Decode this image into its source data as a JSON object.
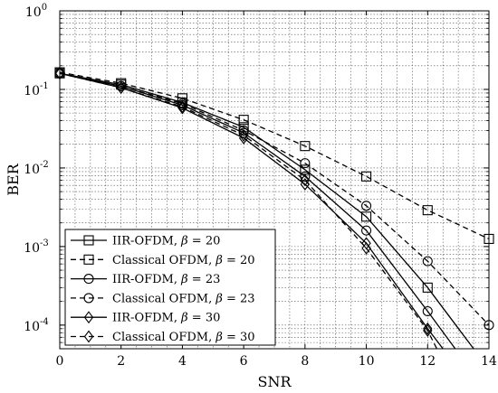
{
  "chart_data": {
    "type": "line",
    "xlabel": "SNR",
    "ylabel": "BER",
    "xlim": [
      0,
      14
    ],
    "ylim": [
      5e-05,
      1
    ],
    "yscale": "log",
    "grid": true,
    "legend_position": "bottom-left",
    "x_ticks": [
      0,
      2,
      4,
      6,
      8,
      10,
      12,
      14
    ],
    "y_ticks": [
      {
        "value": 1,
        "base": "10",
        "exp": "0"
      },
      {
        "value": 0.1,
        "base": "10",
        "exp": "-1"
      },
      {
        "value": 0.01,
        "base": "10",
        "exp": "-2"
      },
      {
        "value": 0.001,
        "base": "10",
        "exp": "-3"
      },
      {
        "value": 0.0001,
        "base": "10",
        "exp": "-4"
      }
    ],
    "series": [
      {
        "name": "IIR-OFDM, β = 20",
        "label_prefix": "IIR-OFDM, ",
        "label_symbol": "β",
        "label_suffix": " = 20",
        "dash": "solid",
        "marker": "square",
        "x": [
          0,
          2,
          4,
          6,
          8,
          10,
          12,
          13.5
        ],
        "y": [
          0.16,
          0.115,
          0.068,
          0.033,
          0.0095,
          0.0024,
          0.0003,
          5e-05
        ]
      },
      {
        "name": "Classical OFDM, β = 20",
        "label_prefix": "Classical OFDM, ",
        "label_symbol": "β",
        "label_suffix": " = 20",
        "dash": "dashed",
        "marker": "square",
        "x": [
          0,
          2,
          4,
          6,
          8,
          10,
          12,
          14
        ],
        "y": [
          0.165,
          0.12,
          0.077,
          0.041,
          0.019,
          0.0078,
          0.0029,
          0.00125
        ]
      },
      {
        "name": "IIR-OFDM, β = 23",
        "label_prefix": "IIR-OFDM, ",
        "label_symbol": "β",
        "label_suffix": " = 23",
        "dash": "solid",
        "marker": "circle",
        "x": [
          0,
          2,
          4,
          6,
          8,
          10,
          12,
          12.9
        ],
        "y": [
          0.16,
          0.11,
          0.063,
          0.028,
          0.0078,
          0.0016,
          0.00015,
          5e-05
        ]
      },
      {
        "name": "Classical OFDM, β = 23",
        "label_prefix": "Classical OFDM, ",
        "label_symbol": "β",
        "label_suffix": " = 23",
        "dash": "dashed",
        "marker": "circle",
        "x": [
          0,
          2,
          4,
          6,
          8,
          10,
          12,
          14
        ],
        "y": [
          0.16,
          0.11,
          0.066,
          0.03,
          0.0115,
          0.0033,
          0.00065,
          0.0001
        ]
      },
      {
        "name": "IIR-OFDM, β = 30",
        "label_prefix": "IIR-OFDM, ",
        "label_symbol": "β",
        "label_suffix": " = 30",
        "dash": "solid",
        "marker": "diamond",
        "x": [
          0,
          2,
          4,
          6,
          8,
          10,
          12,
          12.5
        ],
        "y": [
          0.16,
          0.105,
          0.058,
          0.024,
          0.0062,
          0.0011,
          9e-05,
          5e-05
        ]
      },
      {
        "name": "Classical OFDM, β = 30",
        "label_prefix": "Classical OFDM, ",
        "label_symbol": "β",
        "label_suffix": " = 30",
        "dash": "dashed",
        "marker": "diamond",
        "x": [
          0,
          2,
          4,
          6,
          8,
          10,
          12,
          12.3
        ],
        "y": [
          0.16,
          0.105,
          0.06,
          0.026,
          0.007,
          0.00095,
          8.5e-05,
          5e-05
        ]
      }
    ]
  }
}
